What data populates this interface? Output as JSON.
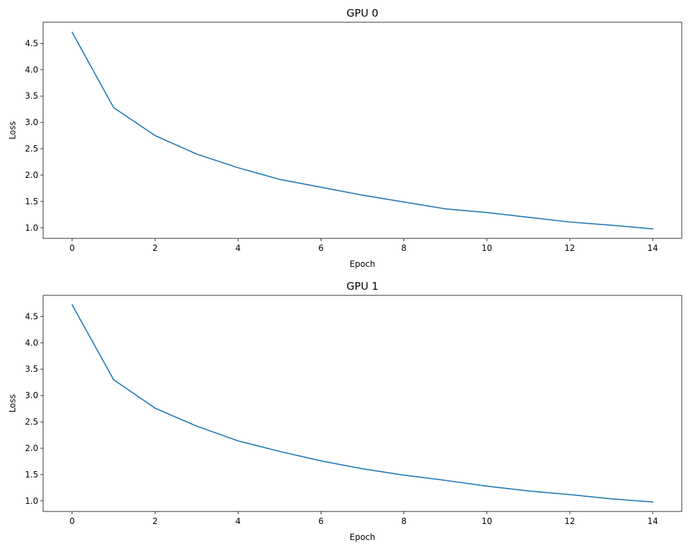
{
  "chart_data": [
    {
      "type": "line",
      "title": "GPU 0",
      "xlabel": "Epoch",
      "ylabel": "Loss",
      "x": [
        0,
        1,
        2,
        3,
        4,
        5,
        6,
        7,
        8,
        9,
        10,
        11,
        12,
        13,
        14
      ],
      "series": [
        {
          "values": [
            4.71,
            3.28,
            2.75,
            2.4,
            2.14,
            1.92,
            1.77,
            1.62,
            1.49,
            1.36,
            1.29,
            1.2,
            1.11,
            1.05,
            0.98
          ],
          "color": "#1f77b4"
        }
      ],
      "xlim": [
        -0.7,
        14.7
      ],
      "ylim": [
        0.8,
        4.9
      ],
      "xticks": [
        0,
        2,
        4,
        6,
        8,
        10,
        12,
        14
      ],
      "yticks": [
        1.0,
        1.5,
        2.0,
        2.5,
        3.0,
        3.5,
        4.0,
        4.5
      ],
      "grid": false,
      "legend": "none"
    },
    {
      "type": "line",
      "title": "GPU 1",
      "xlabel": "Epoch",
      "ylabel": "Loss",
      "x": [
        0,
        1,
        2,
        3,
        4,
        5,
        6,
        7,
        8,
        9,
        10,
        11,
        12,
        13,
        14
      ],
      "series": [
        {
          "values": [
            4.72,
            3.3,
            2.76,
            2.42,
            2.14,
            1.94,
            1.76,
            1.61,
            1.49,
            1.39,
            1.28,
            1.19,
            1.12,
            1.04,
            0.98
          ],
          "color": "#1f77b4"
        }
      ],
      "xlim": [
        -0.7,
        14.7
      ],
      "ylim": [
        0.8,
        4.9
      ],
      "xticks": [
        0,
        2,
        4,
        6,
        8,
        10,
        12,
        14
      ],
      "yticks": [
        1.0,
        1.5,
        2.0,
        2.5,
        3.0,
        3.5,
        4.0,
        4.5
      ],
      "grid": false,
      "legend": "none"
    }
  ]
}
